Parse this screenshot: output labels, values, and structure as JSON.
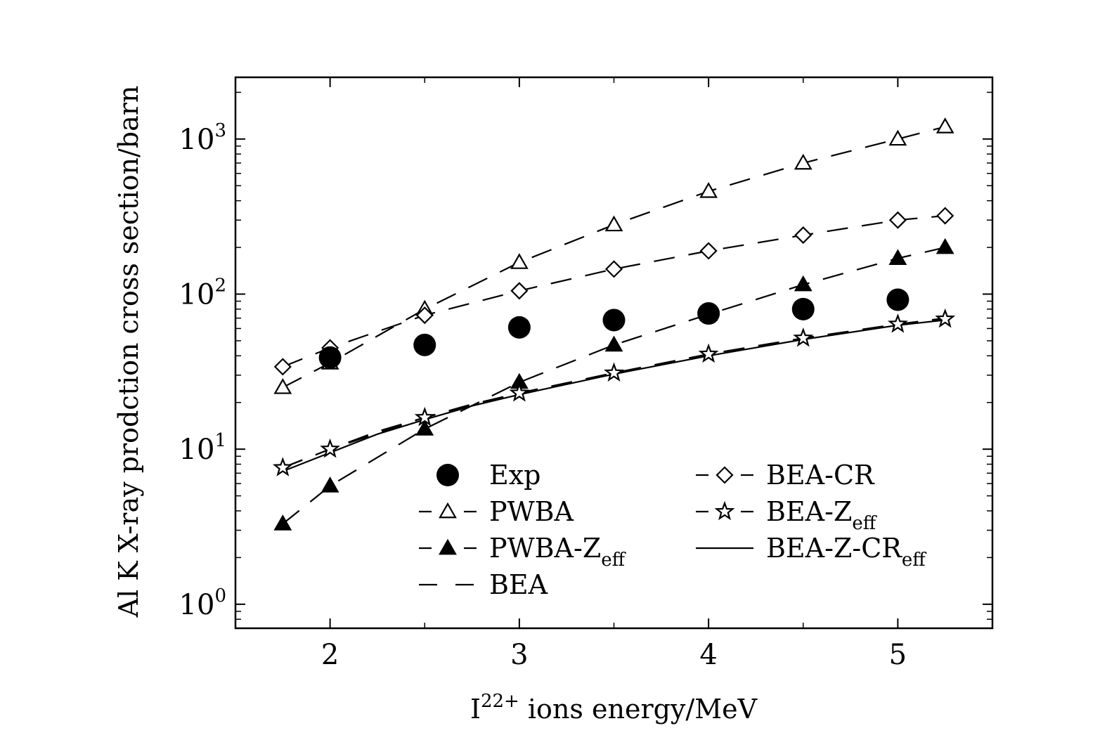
{
  "chart_data": {
    "type": "scatter",
    "title": "",
    "xlabel": {
      "base": "I",
      "sup": "22+",
      "rest": " ions energy/MeV"
    },
    "ylabel": "Al K X-ray prodction cross section/barn",
    "yscale": "log",
    "xlim": [
      1.5,
      5.5
    ],
    "ylim": [
      0.7,
      2500
    ],
    "x_ticks": [
      {
        "value": 2,
        "label": "2"
      },
      {
        "value": 3,
        "label": "3"
      },
      {
        "value": 4,
        "label": "4"
      },
      {
        "value": 5,
        "label": "5"
      }
    ],
    "y_ticks": [
      {
        "value": 1,
        "base": "10",
        "exp": "0"
      },
      {
        "value": 10,
        "base": "10",
        "exp": "1"
      },
      {
        "value": 100,
        "base": "10",
        "exp": "2"
      },
      {
        "value": 1000,
        "base": "10",
        "exp": "3"
      }
    ],
    "series": [
      {
        "name": "Exp",
        "label": "Exp",
        "marker": "filled-circle",
        "line": "none",
        "x": [
          2.0,
          2.5,
          3.0,
          3.5,
          4.0,
          4.5,
          5.0
        ],
        "y": [
          39,
          47,
          61,
          68,
          75,
          80,
          92
        ],
        "err": [
          3,
          4,
          5,
          5,
          6,
          6,
          7
        ]
      },
      {
        "name": "PWBA",
        "label": "PWBA",
        "marker": "open-triangle",
        "line": "dash",
        "x": [
          1.75,
          2.0,
          2.5,
          3.0,
          3.5,
          4.0,
          4.5,
          5.0,
          5.25
        ],
        "y": [
          25,
          36,
          80,
          160,
          280,
          460,
          700,
          1000,
          1200
        ]
      },
      {
        "name": "PWBA-Zeff",
        "label": "PWBA-Z",
        "label_sub": "eff",
        "marker": "filled-triangle",
        "line": "dash",
        "x": [
          1.75,
          2.0,
          2.5,
          3.0,
          3.5,
          4.0,
          4.5,
          5.0,
          5.25
        ],
        "y": [
          3.3,
          5.8,
          13.5,
          27,
          47,
          74,
          115,
          170,
          200
        ]
      },
      {
        "name": "BEA",
        "label": "BEA",
        "marker": "none",
        "line": "dash",
        "x": [
          1.75,
          2.0,
          2.25,
          2.5,
          2.75,
          3.0,
          3.5,
          4.0,
          4.5,
          5.0,
          5.25
        ],
        "y": [
          7.6,
          10,
          13,
          16,
          19.5,
          23,
          31,
          41,
          52,
          64,
          70
        ]
      },
      {
        "name": "BEA-CR",
        "label": "BEA-CR",
        "marker": "open-diamond",
        "line": "dash",
        "x": [
          1.75,
          2.0,
          2.5,
          3.0,
          3.5,
          4.0,
          4.5,
          5.0,
          5.25
        ],
        "y": [
          34,
          45,
          73,
          105,
          145,
          190,
          240,
          300,
          320
        ]
      },
      {
        "name": "BEA-Zeff",
        "label": "BEA-Z",
        "label_sub": "eff",
        "marker": "open-star",
        "line": "dash",
        "x": [
          1.75,
          2.0,
          2.5,
          3.0,
          3.5,
          4.0,
          4.5,
          5.0,
          5.25
        ],
        "y": [
          7.6,
          10,
          16,
          23,
          31,
          41,
          52,
          64,
          69
        ]
      },
      {
        "name": "BEA-Z-CReff",
        "label": "BEA-Z-CR",
        "label_sub": "eff",
        "marker": "none",
        "line": "solid",
        "x": [
          1.75,
          2.0,
          2.25,
          2.5,
          2.75,
          3.0,
          3.5,
          4.0,
          4.5,
          5.0,
          5.25
        ],
        "y": [
          7.2,
          9.5,
          12.5,
          15.5,
          19,
          22.5,
          30.5,
          40,
          51,
          63,
          68
        ]
      }
    ],
    "legend_position": "lower-right"
  }
}
